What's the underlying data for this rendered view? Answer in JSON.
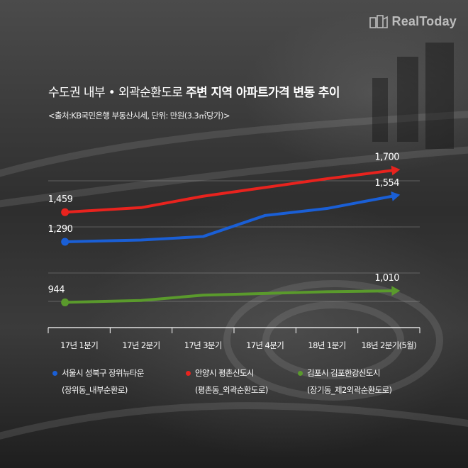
{
  "brand": {
    "name": "RealToday"
  },
  "header": {
    "title_normal": "수도권 내부 • 외곽순환도로 ",
    "title_bold": "주변 지역 아파트가격 변동 추이",
    "subtitle": "<출처:KB국민은행 부동산시세, 단위: 만원(3.3㎡당가)>"
  },
  "legend": [
    {
      "name": "서울시 성북구 장위뉴타운",
      "sub": "(장위동_내부순환로)",
      "color": "#1a5fd6"
    },
    {
      "name": "안양시 평촌신도시",
      "sub": "(평촌동_외곽순환도로)",
      "color": "#e8231e"
    },
    {
      "name": "김포시 김포한강신도시",
      "sub": "(장기동_제2외곽순환도로)",
      "color": "#5a9a2c"
    }
  ],
  "chart_data": {
    "type": "line",
    "categories": [
      "17년 1분기",
      "17년 2분기",
      "17년 3분기",
      "17년 4분기",
      "18년 1분기",
      "18년 2분기(5월)"
    ],
    "series": [
      {
        "name": "안양시 평촌신도시",
        "color": "#e8231e",
        "values": [
          1459,
          1485,
          1550,
          1600,
          1650,
          1700
        ],
        "labels": [
          "1,459",
          "",
          "",
          "",
          "",
          "1,700"
        ]
      },
      {
        "name": "서울시 성북구 장위뉴타운",
        "color": "#1a5fd6",
        "values": [
          1290,
          1300,
          1320,
          1440,
          1480,
          1554
        ],
        "labels": [
          "1,290",
          "",
          "",
          "",
          "",
          "1,554"
        ]
      },
      {
        "name": "김포시 김포한강신도시",
        "color": "#5a9a2c",
        "values": [
          944,
          955,
          985,
          995,
          1005,
          1010
        ],
        "labels": [
          "944",
          "",
          "",
          "",
          "",
          "1,010"
        ]
      }
    ],
    "ylim": [
      800,
      1800
    ],
    "grid": true
  }
}
